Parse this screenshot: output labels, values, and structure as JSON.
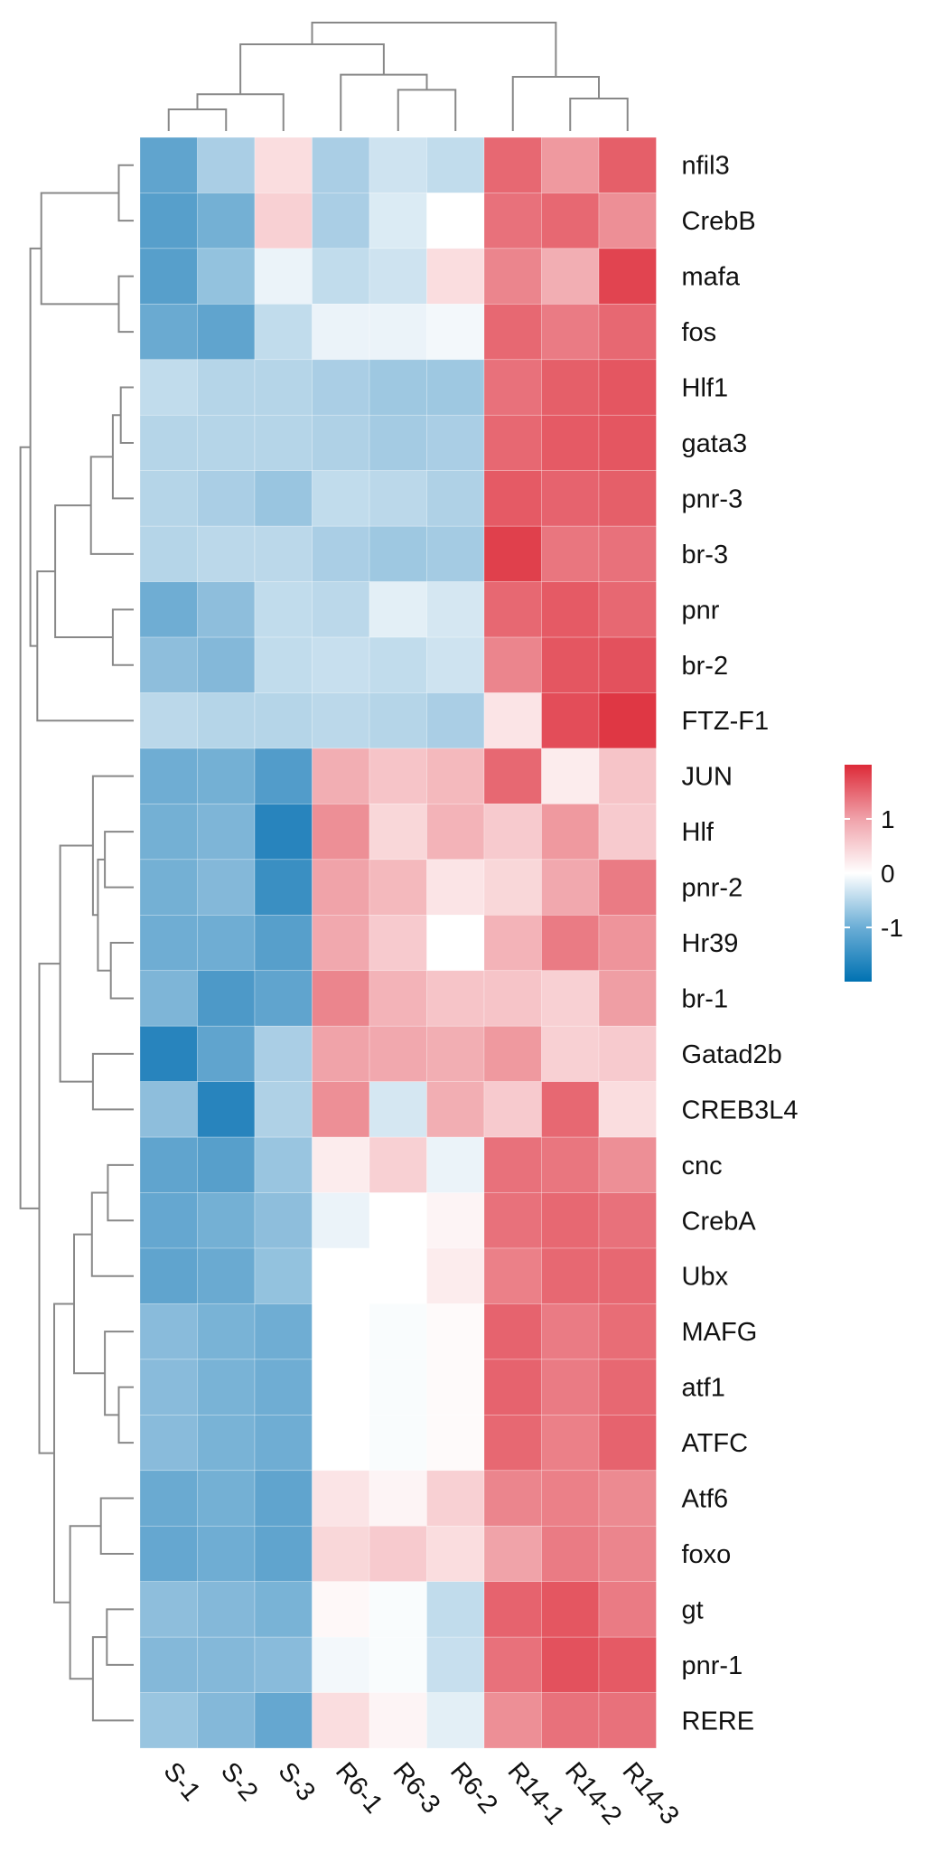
{
  "chart_data": {
    "type": "heatmap",
    "title": "",
    "columns": [
      "S-1",
      "S-2",
      "S-3",
      "R6-1",
      "R6-3",
      "R6-2",
      "R14-1",
      "R14-2",
      "R14-3"
    ],
    "rows": [
      "nfil3",
      "CrebB",
      "mafa",
      "fos",
      "Hlf1",
      "gata3",
      "pnr-3",
      "br-3",
      "pnr",
      "br-2",
      "FTZ-F1",
      "JUN",
      "Hlf",
      "pnr-2",
      "Hr39",
      "br-1",
      "Gatad2b",
      "CREB3L4",
      "cnc",
      "CrebA",
      "Ubx",
      "MAFG",
      "atf1",
      "ATFC",
      "Atf6",
      "foxo",
      "gt",
      "pnr-1",
      "RERE"
    ],
    "values": [
      [
        -1.3,
        -0.6,
        0.2,
        -0.6,
        -0.3,
        -0.4,
        1.3,
        0.8,
        1.4
      ],
      [
        -1.4,
        -1.1,
        0.3,
        -0.6,
        -0.2,
        0.0,
        1.2,
        1.3,
        0.9
      ],
      [
        -1.4,
        -0.8,
        -0.1,
        -0.4,
        -0.3,
        0.2,
        1.0,
        0.6,
        1.7
      ],
      [
        -1.2,
        -1.3,
        -0.4,
        -0.1,
        -0.1,
        -0.05,
        1.3,
        1.1,
        1.3
      ],
      [
        -0.4,
        -0.5,
        -0.5,
        -0.6,
        -0.7,
        -0.7,
        1.2,
        1.4,
        1.5
      ],
      [
        -0.5,
        -0.5,
        -0.5,
        -0.55,
        -0.65,
        -0.6,
        1.3,
        1.45,
        1.5
      ],
      [
        -0.5,
        -0.6,
        -0.75,
        -0.4,
        -0.45,
        -0.55,
        1.45,
        1.35,
        1.4
      ],
      [
        -0.5,
        -0.45,
        -0.45,
        -0.6,
        -0.7,
        -0.65,
        1.75,
        1.15,
        1.2
      ],
      [
        -1.15,
        -0.85,
        -0.4,
        -0.45,
        -0.15,
        -0.25,
        1.3,
        1.45,
        1.3
      ],
      [
        -0.85,
        -0.95,
        -0.4,
        -0.35,
        -0.4,
        -0.3,
        1.0,
        1.5,
        1.55
      ],
      [
        -0.45,
        -0.5,
        -0.5,
        -0.45,
        -0.5,
        -0.6,
        0.15,
        1.6,
        1.85
      ],
      [
        -1.15,
        -1.1,
        -1.45,
        0.6,
        0.4,
        0.5,
        1.3,
        0.1,
        0.4
      ],
      [
        -1.1,
        -1.0,
        -1.9,
        0.9,
        0.25,
        0.55,
        0.35,
        0.8,
        0.35
      ],
      [
        -1.1,
        -0.95,
        -1.7,
        0.7,
        0.5,
        0.15,
        0.25,
        0.65,
        1.1
      ],
      [
        -1.15,
        -1.15,
        -1.4,
        0.65,
        0.35,
        0.0,
        0.55,
        1.1,
        0.85
      ],
      [
        -1.0,
        -1.5,
        -1.3,
        1.0,
        0.55,
        0.4,
        0.4,
        0.3,
        0.75
      ],
      [
        -1.9,
        -1.3,
        -0.6,
        0.7,
        0.65,
        0.6,
        0.8,
        0.3,
        0.35
      ],
      [
        -0.85,
        -1.9,
        -0.55,
        0.9,
        -0.25,
        0.6,
        0.35,
        1.3,
        0.2
      ],
      [
        -1.3,
        -1.4,
        -0.75,
        0.1,
        0.3,
        -0.1,
        1.2,
        1.15,
        0.9
      ],
      [
        -1.25,
        -1.1,
        -0.85,
        -0.1,
        0.0,
        0.05,
        1.2,
        1.3,
        1.2
      ],
      [
        -1.3,
        -1.2,
        -0.8,
        0.0,
        0.0,
        0.1,
        1.05,
        1.3,
        1.3
      ],
      [
        -0.9,
        -1.05,
        -1.15,
        0.0,
        -0.02,
        0.02,
        1.35,
        1.1,
        1.25
      ],
      [
        -0.9,
        -1.05,
        -1.15,
        0.0,
        -0.02,
        0.02,
        1.35,
        1.1,
        1.3
      ],
      [
        -0.9,
        -1.05,
        -1.15,
        0.0,
        -0.02,
        0.02,
        1.3,
        1.05,
        1.35
      ],
      [
        -1.2,
        -1.1,
        -1.3,
        0.15,
        0.05,
        0.3,
        1.0,
        1.05,
        0.95
      ],
      [
        -1.25,
        -1.15,
        -1.3,
        0.25,
        0.35,
        0.2,
        0.7,
        1.1,
        1.0
      ],
      [
        -0.85,
        -0.95,
        -1.05,
        0.03,
        -0.02,
        -0.4,
        1.35,
        1.5,
        1.1
      ],
      [
        -0.95,
        -0.95,
        -0.9,
        -0.05,
        -0.02,
        -0.35,
        1.2,
        1.55,
        1.45
      ],
      [
        -0.75,
        -0.95,
        -1.25,
        0.2,
        0.05,
        -0.15,
        0.9,
        1.2,
        1.2
      ]
    ],
    "color_scale": {
      "low": "#1f7fba",
      "mid": "#ffffff",
      "high": "#dd2a38",
      "range": [
        -2,
        2
      ]
    },
    "legend": {
      "position": "right",
      "ticks": [
        {
          "label": "1",
          "value": 1
        },
        {
          "label": "0",
          "value": 0
        },
        {
          "label": "-1",
          "value": -1
        }
      ]
    },
    "column_dendrogram": true,
    "row_dendrogram": true
  }
}
